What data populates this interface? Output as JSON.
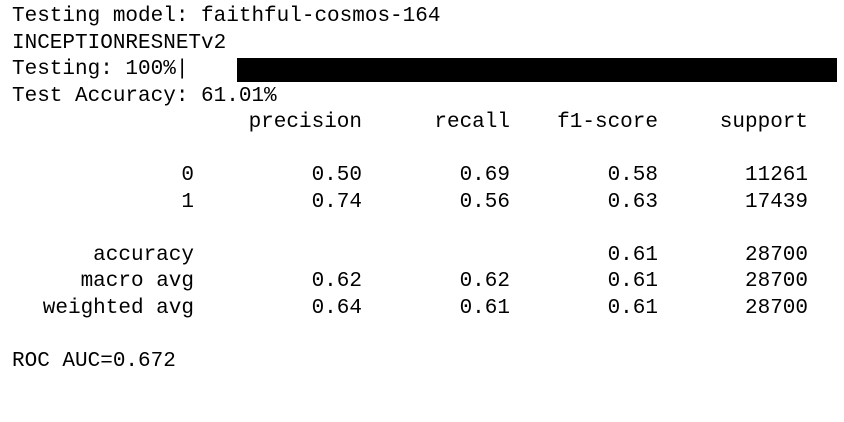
{
  "terminal": {
    "model_line": "Testing model: faithful-cosmos-164",
    "architecture": "INCEPTIONRESNETv2",
    "progress": {
      "label": "Testing: 100%|",
      "percent": 100
    },
    "accuracy_line": "Test Accuracy: 61.01%",
    "report": {
      "headers": [
        "",
        "precision",
        "recall",
        "f1-score",
        "support"
      ],
      "class_rows": [
        [
          "0",
          "0.50",
          "0.69",
          "0.58",
          "11261"
        ],
        [
          "1",
          "0.74",
          "0.56",
          "0.63",
          "17439"
        ]
      ],
      "summary_rows": [
        [
          "accuracy",
          "",
          "",
          "0.61",
          "28700"
        ],
        [
          "macro avg",
          "0.62",
          "0.62",
          "0.61",
          "28700"
        ],
        [
          "weighted avg",
          "0.64",
          "0.61",
          "0.61",
          "28700"
        ]
      ]
    },
    "roc_line": "ROC AUC=0.672"
  }
}
